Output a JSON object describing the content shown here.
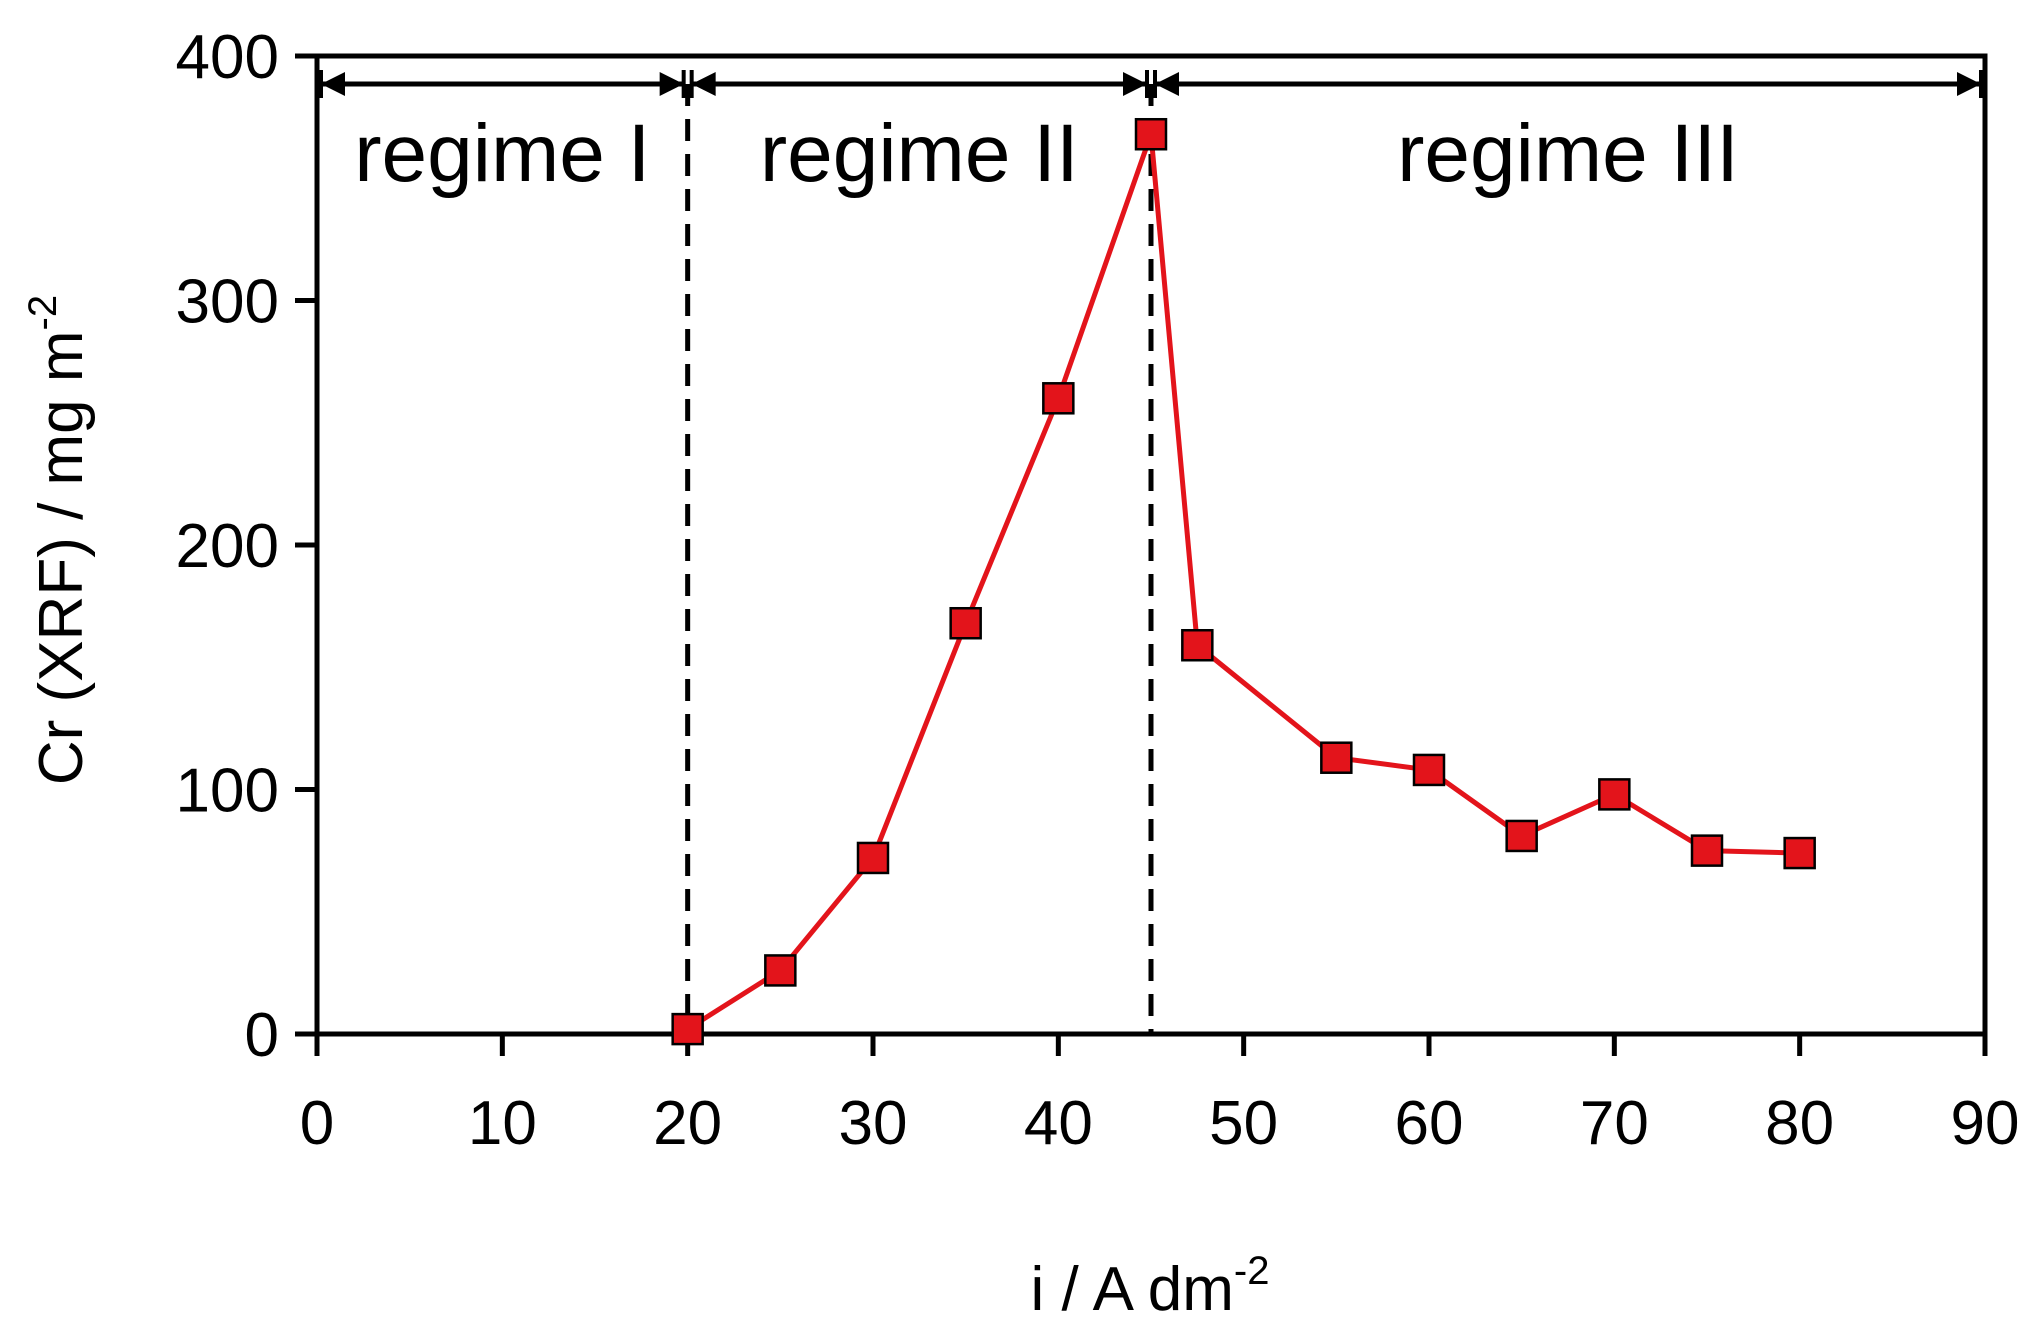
{
  "chart_data": {
    "type": "line",
    "title": "",
    "xlabel": {
      "main": "i / A dm",
      "sup": "-2"
    },
    "ylabel": {
      "main": "Cr (XRF) / mg m",
      "sup": "-2"
    },
    "xlim": [
      0,
      90
    ],
    "ylim": [
      0,
      400
    ],
    "xticks": [
      0,
      10,
      20,
      30,
      40,
      50,
      60,
      70,
      80,
      90
    ],
    "yticks": [
      0,
      100,
      200,
      300,
      400
    ],
    "grid": false,
    "series": [
      {
        "color": "#e3141b",
        "marker": "square",
        "points": [
          {
            "x": 20,
            "y": 2
          },
          {
            "x": 25,
            "y": 26
          },
          {
            "x": 30,
            "y": 72
          },
          {
            "x": 35,
            "y": 168
          },
          {
            "x": 40,
            "y": 260
          },
          {
            "x": 45,
            "y": 368
          },
          {
            "x": 47.5,
            "y": 159
          },
          {
            "x": 55,
            "y": 113
          },
          {
            "x": 60,
            "y": 108
          },
          {
            "x": 65,
            "y": 81
          },
          {
            "x": 70,
            "y": 98
          },
          {
            "x": 75,
            "y": 75
          },
          {
            "x": 80,
            "y": 74
          }
        ]
      }
    ],
    "regime_boundaries": [
      20,
      45
    ],
    "regimes": [
      {
        "label": "regime I",
        "from": 0,
        "to": 20
      },
      {
        "label": "regime II",
        "from": 20,
        "to": 45
      },
      {
        "label": "regime III",
        "from": 45,
        "to": 90
      }
    ]
  }
}
